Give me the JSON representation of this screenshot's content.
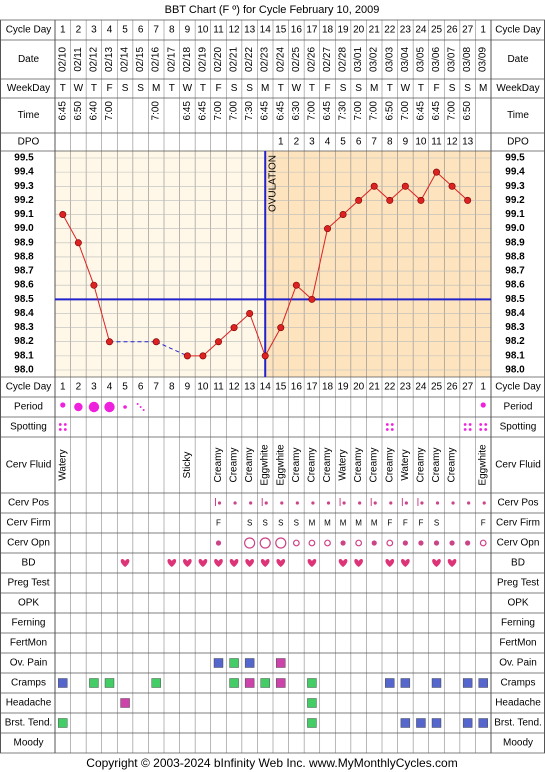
{
  "title": "BBT Chart (F º) for Cycle February 10, 2009",
  "footer": "Copyright © 2003-2024 bInfinity Web Inc.    www.MyMonthlyCycles.com",
  "colors": {
    "grid_bg": "#fff8e8",
    "post_ovulation_bg": "#fde4bf",
    "temp_line": "#dd2222",
    "temp_point": "#dd2222",
    "coverline": "#2222cc",
    "ovulation_line": "#2222cc",
    "period": "#ee22dd",
    "spotting": "#ee22dd",
    "bd_heart": "#dd3377",
    "cerv": "#cc4488",
    "ov_pain_blue": "#5566cc",
    "ov_pain_green": "#44cc66",
    "ov_pain_pink": "#cc44aa"
  },
  "labels": {
    "cycle_day": "Cycle Day",
    "date": "Date",
    "weekday": "WeekDay",
    "time": "Time",
    "dpo": "DPO",
    "ovulation": "OVULATION",
    "period": "Period",
    "spotting": "Spotting",
    "cerv_fluid": "Cerv Fluid",
    "cerv_pos": "Cerv Pos",
    "cerv_firm": "Cerv Firm",
    "cerv_opn": "Cerv Opn",
    "bd": "BD",
    "preg_test": "Preg Test",
    "opk": "OPK",
    "ferning": "Ferning",
    "fertmon": "FertMon",
    "ov_pain": "Ov. Pain",
    "cramps": "Cramps",
    "headache": "Headache",
    "brst_tend": "Brst. Tend.",
    "moody": "Moody"
  },
  "cycle_days": [
    "1",
    "2",
    "3",
    "4",
    "5",
    "6",
    "7",
    "8",
    "9",
    "10",
    "11",
    "12",
    "13",
    "14",
    "15",
    "16",
    "17",
    "18",
    "19",
    "20",
    "21",
    "22",
    "23",
    "24",
    "25",
    "26",
    "27",
    "1"
  ],
  "dates": [
    "02/10",
    "02/11",
    "02/12",
    "02/13",
    "02/14",
    "02/15",
    "02/16",
    "02/17",
    "02/18",
    "02/19",
    "02/20",
    "02/21",
    "02/22",
    "02/23",
    "02/24",
    "02/25",
    "02/26",
    "02/27",
    "02/28",
    "03/01",
    "03/02",
    "03/03",
    "03/04",
    "03/05",
    "03/06",
    "03/07",
    "03/08",
    "03/09"
  ],
  "weekdays": [
    "T",
    "W",
    "T",
    "F",
    "S",
    "S",
    "M",
    "T",
    "W",
    "T",
    "F",
    "S",
    "S",
    "M",
    "T",
    "W",
    "T",
    "F",
    "S",
    "S",
    "M",
    "T",
    "W",
    "T",
    "F",
    "S",
    "S",
    "M"
  ],
  "times": [
    "6:45",
    "6:50",
    "6:40",
    "7:00",
    "",
    "",
    "7:00",
    "",
    "6:45",
    "6:45",
    "7:00",
    "7:00",
    "7:30",
    "6:45",
    "6:45",
    "6:30",
    "7:00",
    "6:45",
    "7:30",
    "7:00",
    "7:00",
    "6:50",
    "7:00",
    "6:45",
    "6:45",
    "7:00",
    "6:50",
    ""
  ],
  "dpo": [
    "",
    "",
    "",
    "",
    "",
    "",
    "",
    "",
    "",
    "",
    "",
    "",
    "",
    "",
    "1",
    "2",
    "3",
    "4",
    "5",
    "6",
    "7",
    "8",
    "9",
    "10",
    "11",
    "12",
    "13",
    ""
  ],
  "cerv_fluid": [
    "Watery",
    "",
    "",
    "",
    "",
    "",
    "",
    "",
    "Sticky",
    "",
    "Creamy",
    "Creamy",
    "Creamy",
    "Eggwhite",
    "Eggwhite",
    "Creamy",
    "Creamy",
    "Creamy",
    "Watery",
    "Creamy",
    "Creamy",
    "Creamy",
    "Watery",
    "Creamy",
    "Creamy",
    "Creamy",
    "",
    "Eggwhite"
  ],
  "cerv_firm": [
    "",
    "",
    "",
    "",
    "",
    "",
    "",
    "",
    "",
    "",
    "F",
    "",
    "S",
    "S",
    "S",
    "S",
    "M",
    "M",
    "M",
    "M",
    "M",
    "F",
    "F",
    "F",
    "S",
    "",
    "",
    "F"
  ],
  "chart_data": {
    "type": "line",
    "title": "BBT Chart (F º) for Cycle February 10, 2009",
    "x": [
      "1",
      "2",
      "3",
      "4",
      "5",
      "6",
      "7",
      "8",
      "9",
      "10",
      "11",
      "12",
      "13",
      "14",
      "15",
      "16",
      "17",
      "18",
      "19",
      "20",
      "21",
      "22",
      "23",
      "24",
      "25",
      "26",
      "27",
      "1"
    ],
    "series": [
      {
        "values": [
          99.1,
          98.9,
          98.6,
          98.2,
          null,
          null,
          98.2,
          null,
          98.1,
          98.1,
          98.2,
          98.3,
          98.4,
          98.1,
          98.3,
          98.6,
          98.5,
          99.0,
          99.1,
          99.2,
          99.3,
          99.2,
          99.3,
          99.2,
          99.4,
          99.3,
          99.2,
          null
        ]
      }
    ],
    "y_ticks": [
      "98.0",
      "98.1",
      "98.2",
      "98.3",
      "98.4",
      "98.5",
      "98.6",
      "98.7",
      "98.8",
      "98.9",
      "99.0",
      "99.1",
      "99.2",
      "99.3",
      "99.4",
      "99.5"
    ],
    "ylim": [
      98.0,
      99.5
    ],
    "coverline": 98.5,
    "ovulation_day_index": 13,
    "grid": true
  },
  "events": {
    "period": [
      3,
      4,
      5,
      5,
      2,
      1,
      0,
      0,
      0,
      0,
      0,
      0,
      0,
      0,
      0,
      0,
      0,
      0,
      0,
      0,
      0,
      0,
      0,
      0,
      0,
      0,
      0,
      3
    ],
    "spotting": [
      1,
      0,
      0,
      0,
      0,
      0,
      0,
      0,
      0,
      0,
      0,
      0,
      0,
      0,
      0,
      0,
      0,
      0,
      0,
      0,
      0,
      1,
      0,
      0,
      0,
      0,
      1,
      1
    ],
    "cerv_pos": [
      0,
      0,
      0,
      0,
      0,
      0,
      0,
      0,
      0,
      0,
      2,
      1,
      1,
      2,
      1,
      1,
      1,
      1,
      2,
      1,
      2,
      1,
      2,
      2,
      1,
      1,
      1,
      1
    ],
    "cerv_opn": [
      0,
      0,
      0,
      0,
      0,
      0,
      0,
      0,
      0,
      0,
      1,
      0,
      3,
      3,
      3,
      2,
      2,
      2,
      1,
      2,
      1,
      2,
      1,
      1,
      1,
      1,
      1,
      2
    ],
    "bd": [
      0,
      0,
      0,
      0,
      1,
      0,
      0,
      1,
      1,
      1,
      1,
      1,
      1,
      1,
      1,
      0,
      1,
      0,
      1,
      1,
      0,
      1,
      1,
      0,
      1,
      1,
      0,
      0
    ],
    "ov_pain": [
      "",
      "",
      "",
      "",
      "",
      "",
      "",
      "",
      "",
      "",
      "blue",
      "green",
      "blue",
      "",
      "pink",
      "",
      "",
      "",
      "",
      "",
      "",
      "",
      "",
      "",
      "",
      "",
      "",
      ""
    ],
    "cramps": [
      "blue",
      "",
      "green",
      "green",
      "",
      "",
      "green",
      "",
      "",
      "",
      "",
      "green",
      "pink",
      "green",
      "pink",
      "",
      "green",
      "",
      "",
      "",
      "",
      "blue",
      "blue",
      "",
      "blue",
      "",
      "blue",
      "blue"
    ],
    "headache": [
      "",
      "",
      "",
      "",
      "pink",
      "",
      "",
      "",
      "",
      "",
      "",
      "",
      "",
      "",
      "",
      "",
      "green",
      "",
      "",
      "",
      "",
      "",
      "",
      "",
      "",
      "",
      "",
      ""
    ],
    "brst_tend": [
      "green",
      "",
      "",
      "",
      "",
      "",
      "",
      "",
      "",
      "",
      "",
      "",
      "",
      "",
      "",
      "",
      "green",
      "",
      "",
      "",
      "",
      "",
      "blue",
      "blue",
      "blue",
      "",
      "blue",
      "blue"
    ]
  }
}
